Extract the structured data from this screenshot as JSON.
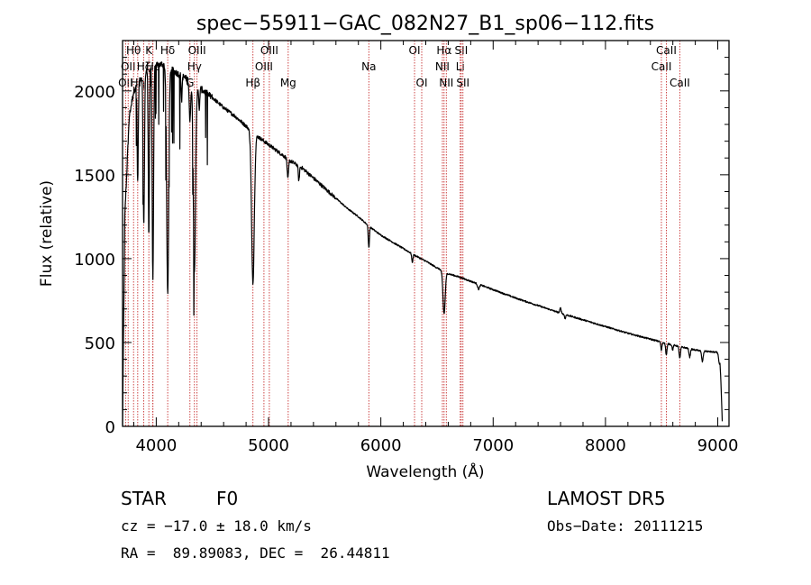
{
  "chart_data": {
    "type": "line",
    "title": "spec−55911−GAC_082N27_B1_sp06−112.fits",
    "xlabel": "Wavelength (Å)",
    "ylabel": "Flux (relative)",
    "xlim": [
      3700,
      9100
    ],
    "ylim": [
      0,
      2300
    ],
    "xticks": [
      4000,
      5000,
      6000,
      7000,
      8000,
      9000
    ],
    "yticks": [
      0,
      500,
      1000,
      1500,
      2000
    ],
    "line_color": "#000000",
    "marker_color": "#c83232",
    "continuum": {
      "x": [
        3700,
        3720,
        3740,
        3760,
        3800,
        3850,
        3900,
        3950,
        4000,
        4050,
        4100,
        4200,
        4300,
        4400,
        4500,
        4600,
        4700,
        4800,
        4900,
        5000,
        5100,
        5200,
        5300,
        5400,
        5500,
        5600,
        5700,
        5800,
        5900,
        6000,
        6100,
        6200,
        6300,
        6400,
        6500,
        6600,
        6700,
        6800,
        6900,
        7000,
        7200,
        7400,
        7600,
        7800,
        8000,
        8200,
        8400,
        8600,
        8800,
        9000,
        9020,
        9040
      ],
      "y": [
        0,
        1250,
        1550,
        1850,
        2000,
        2070,
        2110,
        2140,
        2150,
        2160,
        2140,
        2100,
        2060,
        2010,
        1960,
        1900,
        1850,
        1790,
        1730,
        1680,
        1630,
        1580,
        1540,
        1480,
        1420,
        1360,
        1300,
        1250,
        1190,
        1140,
        1100,
        1060,
        1020,
        985,
        945,
        910,
        890,
        865,
        840,
        815,
        765,
        720,
        675,
        635,
        595,
        555,
        520,
        485,
        455,
        440,
        420,
        30
      ]
    },
    "absorption": [
      {
        "x": 3835,
        "depth": 600,
        "width": 5
      },
      {
        "x": 3889,
        "depth": 900,
        "width": 6
      },
      {
        "x": 3934,
        "depth": 1000,
        "width": 5
      },
      {
        "x": 3970,
        "depth": 1250,
        "width": 6
      },
      {
        "x": 4102,
        "depth": 1350,
        "width": 9
      },
      {
        "x": 4226,
        "depth": 150,
        "width": 4
      },
      {
        "x": 4300,
        "depth": 250,
        "width": 6
      },
      {
        "x": 4340,
        "depth": 1100,
        "width": 10
      },
      {
        "x": 4383,
        "depth": 150,
        "width": 4
      },
      {
        "x": 4861,
        "depth": 900,
        "width": 12
      },
      {
        "x": 5172,
        "depth": 120,
        "width": 6
      },
      {
        "x": 5270,
        "depth": 90,
        "width": 5
      },
      {
        "x": 5893,
        "depth": 130,
        "width": 5
      },
      {
        "x": 6280,
        "depth": 50,
        "width": 5
      },
      {
        "x": 6563,
        "depth": 250,
        "width": 10
      },
      {
        "x": 6870,
        "depth": 30,
        "width": 8
      },
      {
        "x": 7600,
        "depth": -30,
        "width": 6
      },
      {
        "x": 7640,
        "depth": 25,
        "width": 5
      },
      {
        "x": 8498,
        "depth": 50,
        "width": 5
      },
      {
        "x": 8542,
        "depth": 70,
        "width": 6
      },
      {
        "x": 8598,
        "depth": 30,
        "width": 5
      },
      {
        "x": 8662,
        "depth": 70,
        "width": 6
      },
      {
        "x": 8750,
        "depth": 50,
        "width": 6
      },
      {
        "x": 8863,
        "depth": 65,
        "width": 7
      },
      {
        "x": 9015,
        "depth": 55,
        "width": 7
      }
    ],
    "lines": [
      {
        "x": 3727,
        "label": "OII",
        "row": 3
      },
      {
        "x": 3750,
        "label": "OII",
        "row": 2
      },
      {
        "x": 3798,
        "label": "Hθ",
        "row": 1
      },
      {
        "x": 3835,
        "label": "Hη",
        "row": 3
      },
      {
        "x": 3889,
        "label": "Hζ",
        "row": 2
      },
      {
        "x": 3934,
        "label": "K",
        "row": 1
      },
      {
        "x": 3970,
        "label": "H",
        "row": 3
      },
      {
        "x": 3970,
        "label": "Hε",
        "row": 2
      },
      {
        "x": 4102,
        "label": "Hδ",
        "row": 1
      },
      {
        "x": 4300,
        "label": "G",
        "row": 3
      },
      {
        "x": 4340,
        "label": "Hγ",
        "row": 2
      },
      {
        "x": 4363,
        "label": "OIII",
        "row": 1
      },
      {
        "x": 4861,
        "label": "Hβ",
        "row": 3
      },
      {
        "x": 4959,
        "label": "OIII",
        "row": 2
      },
      {
        "x": 5007,
        "label": "OIII",
        "row": 1
      },
      {
        "x": 5175,
        "label": "Mg",
        "row": 3
      },
      {
        "x": 5893,
        "label": "Na",
        "row": 2
      },
      {
        "x": 6300,
        "label": "OI",
        "row": 1
      },
      {
        "x": 6364,
        "label": "OI",
        "row": 3
      },
      {
        "x": 6548,
        "label": "NII",
        "row": 2
      },
      {
        "x": 6563,
        "label": "Hα",
        "row": 1
      },
      {
        "x": 6583,
        "label": "NII",
        "row": 3
      },
      {
        "x": 6707,
        "label": "Li",
        "row": 2
      },
      {
        "x": 6716,
        "label": "SII",
        "row": 1
      },
      {
        "x": 6731,
        "label": "SII",
        "row": 3
      },
      {
        "x": 8498,
        "label": "CaII",
        "row": 2
      },
      {
        "x": 8542,
        "label": "CaII",
        "row": 1
      },
      {
        "x": 8662,
        "label": "CaII",
        "row": 3
      }
    ]
  },
  "info": {
    "class": "STAR",
    "subclass": "F0",
    "survey": "LAMOST DR5",
    "cz": "cz = −17.0 ± 18.0 km/s",
    "obs_date": "Obs−Date: 20111215",
    "coords": "RA =  89.89083, DEC =  26.44811"
  }
}
